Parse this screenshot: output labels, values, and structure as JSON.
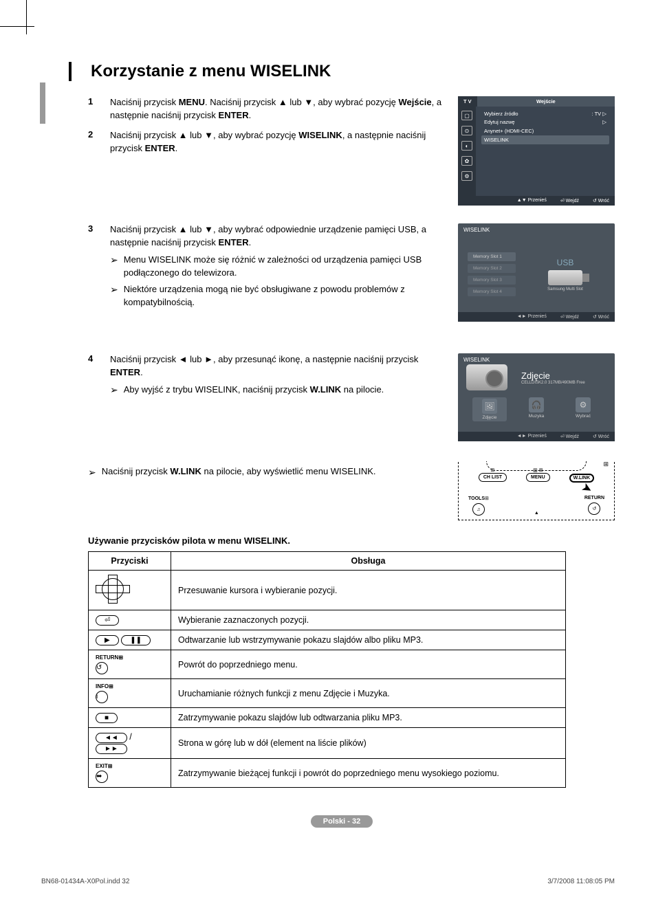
{
  "title": "Korzystanie z menu WISELINK",
  "steps": {
    "s1": {
      "num": "1",
      "pre": "Naciśnij przycisk ",
      "b1": "MENU",
      "mid1": ". Naciśnij przycisk ▲ lub ▼, aby wybrać pozycję ",
      "b2": "Wejście",
      "mid2": ", a następnie naciśnij przycisk ",
      "b3": "ENTER",
      "end": "."
    },
    "s2": {
      "num": "2",
      "pre": "Naciśnij przycisk ▲ lub ▼, aby wybrać pozycję ",
      "b1": "WISELINK",
      "mid": ", a następnie naciśnij przycisk ",
      "b2": "ENTER",
      "end": "."
    },
    "s3": {
      "num": "3",
      "pre": "Naciśnij przycisk ▲ lub ▼, aby wybrać odpowiednie urządzenie pamięci USB, a następnie naciśnij przycisk ",
      "b1": "ENTER",
      "end": ".",
      "note1": "Menu WISELINK może się różnić w zależności od urządzenia pamięci USB podłączonego do telewizora.",
      "note2": "Niektóre urządzenia mogą nie być obsługiwane z powodu problemów z kompatybilnością."
    },
    "s4": {
      "num": "4",
      "pre": "Naciśnij przycisk ◄ lub ►, aby przesunąć ikonę, a następnie naciśnij przycisk ",
      "b1": "ENTER",
      "end": ".",
      "note1_pre": "Aby wyjść z trybu WISELINK, naciśnij przycisk ",
      "note1_b": "W.LINK",
      "note1_end": " na pilocie."
    }
  },
  "bottom_note": {
    "pre": "Naciśnij przycisk ",
    "b": "W.LINK",
    "end": " na pilocie, aby wyświetlić menu WISELINK."
  },
  "subheading": "Używanie przycisków pilota w menu WISELINK.",
  "table": {
    "col1": "Przyciski",
    "col2": "Obsługa",
    "rows": [
      {
        "icon": "dpad",
        "desc": "Przesuwanie kursora i wybieranie pozycji."
      },
      {
        "icon": "enter",
        "desc": "Wybieranie zaznaczonych pozycji."
      },
      {
        "icon": "playpause",
        "desc": "Odtwarzanie lub wstrzymywanie pokazu slajdów albo pliku MP3."
      },
      {
        "icon": "return",
        "label": "RETURN",
        "desc": "Powrót do poprzedniego menu."
      },
      {
        "icon": "info",
        "label": "INFO",
        "desc": "Uruchamianie różnych funkcji z menu Zdjęcie i Muzyka."
      },
      {
        "icon": "stop",
        "desc": "Zatrzymywanie pokazu slajdów lub odtwarzania pliku MP3."
      },
      {
        "icon": "rewff",
        "desc": "Strona w górę lub w dół (element na liście plików)"
      },
      {
        "icon": "exit",
        "label": "EXIT",
        "desc": "Zatrzymywanie bieżącej funkcji i powrót do poprzedniego menu wysokiego poziomu."
      }
    ]
  },
  "osd1": {
    "tab": "T V",
    "title": "Wejście",
    "items": [
      {
        "l": "Wybierz źródło",
        "r": ": TV",
        "arrow": "▷"
      },
      {
        "l": "Edytuj nazwę",
        "r": "",
        "arrow": "▷"
      },
      {
        "l": "Anynet+ (HDMI-CEC)",
        "r": "",
        "arrow": ""
      },
      {
        "l": "WISELINK",
        "r": "",
        "arrow": "",
        "hl": true
      }
    ],
    "footer": {
      "move": "Przenieś",
      "enter": "Wejdź",
      "ret": "Wróć"
    }
  },
  "osd2": {
    "brand": "WISELINK",
    "slots": [
      "Memory Slot 1",
      "Memory Slot 2",
      "Memory Slot 3",
      "Memory Slot 4"
    ],
    "usb": "USB",
    "usb_sub": "Samsung Multi Slot",
    "footer": {
      "move": "Przenieś",
      "enter": "Wejdź",
      "ret": "Wróć"
    }
  },
  "osd3": {
    "brand": "WISELINK",
    "title": "Zdjęcie",
    "sub": "CELLDISK2.0\n317MB/490MB Free",
    "modes": [
      {
        "l": "Zdjęcie",
        "sel": true
      },
      {
        "l": "Muzyka"
      },
      {
        "l": "Wybrać"
      }
    ],
    "footer": {
      "move": "Przenieś",
      "enter": "Wejdź",
      "ret": "Wróć"
    }
  },
  "remote": {
    "chlist": "CH LIST",
    "menu": "MENU",
    "wlink": "W.LINK",
    "tools": "TOOLS",
    "return": "RETURN"
  },
  "page": "Polski - 32",
  "footer_left": "BN68-01434A-X0Pol.indd   32",
  "footer_right": "3/7/2008   11:08:05 PM"
}
